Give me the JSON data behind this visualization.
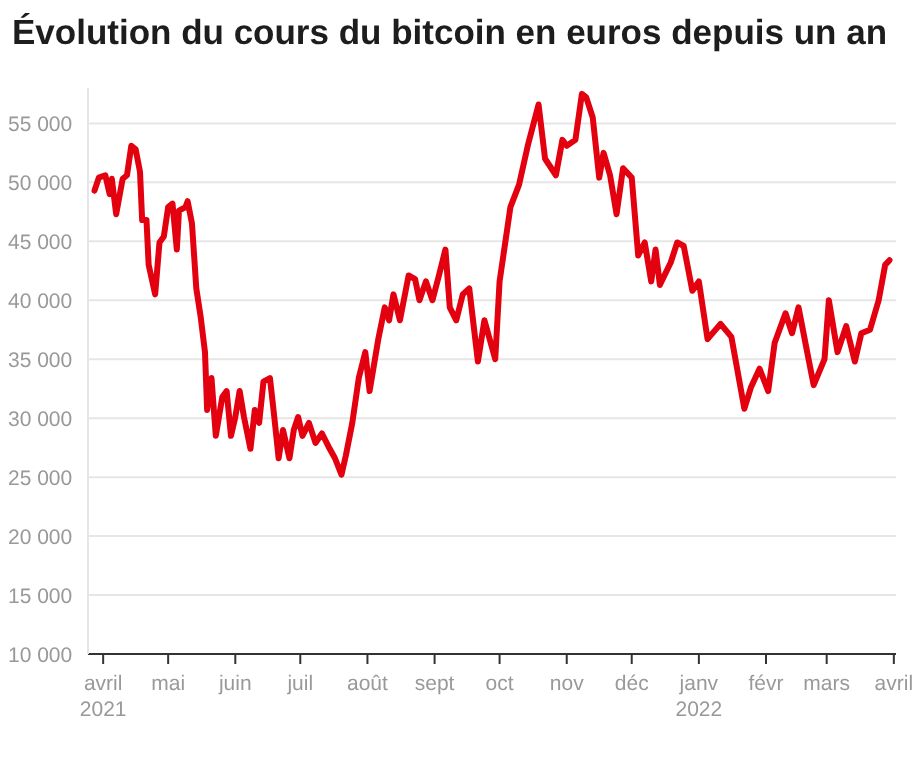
{
  "chart_data": {
    "type": "line",
    "title": "Évolution du cours du bitcoin en euros depuis un an",
    "x": [
      "2021-03-28",
      "2021-03-30",
      "2021-04-02",
      "2021-04-04",
      "2021-04-05",
      "2021-04-07",
      "2021-04-10",
      "2021-04-12",
      "2021-04-14",
      "2021-04-16",
      "2021-04-18",
      "2021-04-19",
      "2021-04-21",
      "2021-04-22",
      "2021-04-25",
      "2021-04-27",
      "2021-04-29",
      "2021-05-01",
      "2021-05-03",
      "2021-05-05",
      "2021-05-06",
      "2021-05-09",
      "2021-05-10",
      "2021-05-12",
      "2021-05-14",
      "2021-05-16",
      "2021-05-18",
      "2021-05-19",
      "2021-05-21",
      "2021-05-23",
      "2021-05-26",
      "2021-05-28",
      "2021-05-30",
      "2021-06-01",
      "2021-06-03",
      "2021-06-05",
      "2021-06-08",
      "2021-06-10",
      "2021-06-12",
      "2021-06-14",
      "2021-06-17",
      "2021-06-19",
      "2021-06-21",
      "2021-06-23",
      "2021-06-26",
      "2021-06-28",
      "2021-06-30",
      "2021-07-02",
      "2021-07-05",
      "2021-07-08",
      "2021-07-11",
      "2021-07-14",
      "2021-07-17",
      "2021-07-20",
      "2021-07-22",
      "2021-07-25",
      "2021-07-28",
      "2021-07-31",
      "2021-08-02",
      "2021-08-06",
      "2021-08-09",
      "2021-08-11",
      "2021-08-13",
      "2021-08-16",
      "2021-08-20",
      "2021-08-23",
      "2021-08-25",
      "2021-08-28",
      "2021-08-31",
      "2021-09-03",
      "2021-09-06",
      "2021-09-08",
      "2021-09-11",
      "2021-09-14",
      "2021-09-17",
      "2021-09-21",
      "2021-09-24",
      "2021-09-29",
      "2021-10-01",
      "2021-10-06",
      "2021-10-10",
      "2021-10-14",
      "2021-10-19",
      "2021-10-22",
      "2021-10-27",
      "2021-10-30",
      "2021-11-01",
      "2021-11-05",
      "2021-11-08",
      "2021-11-10",
      "2021-11-13",
      "2021-11-16",
      "2021-11-18",
      "2021-11-21",
      "2021-11-24",
      "2021-11-27",
      "2021-12-01",
      "2021-12-04",
      "2021-12-07",
      "2021-12-10",
      "2021-12-12",
      "2021-12-14",
      "2021-12-19",
      "2021-12-22",
      "2021-12-25",
      "2021-12-29",
      "2022-01-01",
      "2022-01-05",
      "2022-01-11",
      "2022-01-16",
      "2022-01-22",
      "2022-01-25",
      "2022-01-29",
      "2022-02-02",
      "2022-02-05",
      "2022-02-10",
      "2022-02-13",
      "2022-02-16",
      "2022-02-20",
      "2022-02-23",
      "2022-02-28",
      "2022-03-02",
      "2022-03-06",
      "2022-03-10",
      "2022-03-14",
      "2022-03-17",
      "2022-03-21",
      "2022-03-25",
      "2022-03-28",
      "2022-03-30"
    ],
    "series": [
      {
        "color": "#e3000f",
        "values": [
          49300,
          50400,
          50600,
          49000,
          50300,
          47300,
          50300,
          50600,
          53100,
          52800,
          50900,
          46800,
          46800,
          43000,
          40500,
          44900,
          45400,
          47900,
          48200,
          44300,
          47600,
          47900,
          48400,
          46500,
          41000,
          38600,
          35600,
          30700,
          33400,
          28500,
          31800,
          32300,
          28500,
          30100,
          32300,
          30100,
          27400,
          30700,
          29600,
          33100,
          33400,
          30100,
          26600,
          29000,
          26600,
          29000,
          30100,
          28500,
          29600,
          27900,
          28700,
          27600,
          26600,
          25200,
          26800,
          29600,
          33400,
          35600,
          32300,
          36700,
          39400,
          38300,
          40500,
          38300,
          42100,
          41800,
          40000,
          41600,
          40000,
          42100,
          44300,
          39400,
          38300,
          40500,
          41000,
          34800,
          38300,
          35000,
          41600,
          47900,
          49800,
          53100,
          56600,
          52000,
          50600,
          53600,
          53100,
          53600,
          57500,
          57200,
          55500,
          50400,
          52500,
          50600,
          47300,
          51200,
          50400,
          43800,
          44900,
          41600,
          44300,
          41300,
          43200,
          44900,
          44600,
          40800,
          41600,
          36700,
          38000,
          36900,
          30800,
          32600,
          34200,
          32300,
          36400,
          38900,
          37200,
          39400,
          35600,
          32800,
          35000,
          40000,
          35600,
          37800,
          34800,
          37200,
          37500,
          40000,
          43000,
          43400
        ]
      }
    ],
    "xlim": [
      "2021-03-25",
      "2022-04-02"
    ],
    "xticks": [
      {
        "value": "2021-04-01",
        "label": "avril\n2021"
      },
      {
        "value": "2021-05-01",
        "label": "mai"
      },
      {
        "value": "2021-06-01",
        "label": "juin"
      },
      {
        "value": "2021-07-01",
        "label": "juil"
      },
      {
        "value": "2021-08-01",
        "label": "août"
      },
      {
        "value": "2021-09-01",
        "label": "sept"
      },
      {
        "value": "2021-10-01",
        "label": "oct"
      },
      {
        "value": "2021-11-01",
        "label": "nov"
      },
      {
        "value": "2021-12-01",
        "label": "déc"
      },
      {
        "value": "2022-01-01",
        "label": "janv\n2022"
      },
      {
        "value": "2022-02-01",
        "label": "févr"
      },
      {
        "value": "2022-03-01",
        "label": "mars"
      },
      {
        "value": "2022-04-01",
        "label": "avril"
      }
    ],
    "ylim": [
      10000,
      58000
    ],
    "yticks": [
      {
        "value": 10000,
        "label": "10 000"
      },
      {
        "value": 15000,
        "label": "15 000"
      },
      {
        "value": 20000,
        "label": "20 000"
      },
      {
        "value": 25000,
        "label": "25 000"
      },
      {
        "value": 30000,
        "label": "30 000"
      },
      {
        "value": 35000,
        "label": "35 000"
      },
      {
        "value": 40000,
        "label": "40 000"
      },
      {
        "value": 45000,
        "label": "45 000"
      },
      {
        "value": 50000,
        "label": "50 000"
      },
      {
        "value": 55000,
        "label": "55 000"
      }
    ],
    "grid": "y",
    "marker": "none",
    "line_style": "solid"
  }
}
